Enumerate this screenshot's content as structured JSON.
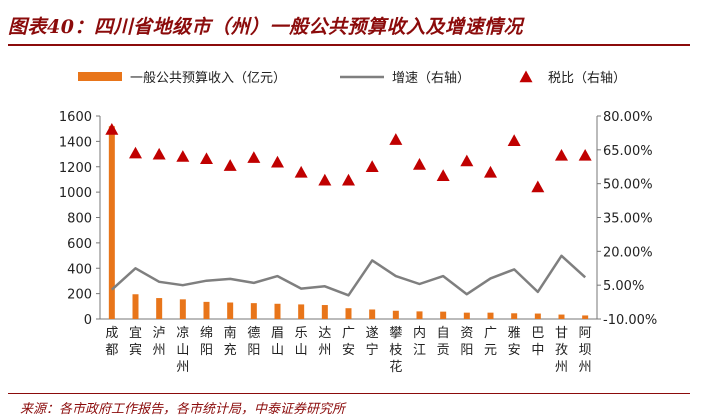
{
  "title": "图表40：四川省地级市（州）一般公共预算收入及增速情况",
  "source": "来源：各市政府工作报告，各市统计局，中泰证券研究所",
  "colors": {
    "bar": "#e8751a",
    "line": "#7f7f7f",
    "marker": "#c00000",
    "accent": "#8b0b0b"
  },
  "chart_data": {
    "type": "bar",
    "categories": [
      "成都",
      "宜宾",
      "泸州",
      "凉山州",
      "绵阳",
      "南充",
      "德阳",
      "眉山",
      "乐山",
      "达州",
      "广安",
      "遂宁",
      "攀枝花",
      "内江",
      "自贡",
      "资阳",
      "广元",
      "雅安",
      "巴中",
      "甘孜州",
      "阿坝州"
    ],
    "series": [
      {
        "name": "一般公共预算收入（亿元）",
        "type": "bar",
        "axis": "left",
        "values": [
          1520,
          195,
          165,
          155,
          135,
          130,
          125,
          120,
          115,
          110,
          85,
          75,
          65,
          60,
          58,
          50,
          50,
          45,
          43,
          35,
          28
        ]
      },
      {
        "name": "增速（右轴）",
        "type": "line",
        "axis": "right",
        "values": [
          3.0,
          12.5,
          6.5,
          5.0,
          7.0,
          7.8,
          6.0,
          9.0,
          3.5,
          4.5,
          0.5,
          16.0,
          9.0,
          5.5,
          9.0,
          1.0,
          8.0,
          12.0,
          2.0,
          18.0,
          8.5
        ]
      },
      {
        "name": "税比（右轴）",
        "type": "scatter",
        "axis": "right",
        "values": [
          74.0,
          63.5,
          63.0,
          62.0,
          61.0,
          58.0,
          61.5,
          59.5,
          55.0,
          51.5,
          51.5,
          57.5,
          69.5,
          58.5,
          53.5,
          60.0,
          55.0,
          69.0,
          48.5,
          62.5,
          62.5
        ]
      }
    ],
    "ylim": [
      0,
      1600
    ],
    "yticks": [
      "0",
      "200",
      "400",
      "600",
      "800",
      "1000",
      "1200",
      "1400",
      "1600"
    ],
    "y2lim": [
      -10,
      80
    ],
    "y2ticks": [
      "-10.00%",
      "5.00%",
      "20.00%",
      "35.00%",
      "50.00%",
      "65.00%",
      "80.00%"
    ],
    "legend_position": "top",
    "grid": false
  }
}
